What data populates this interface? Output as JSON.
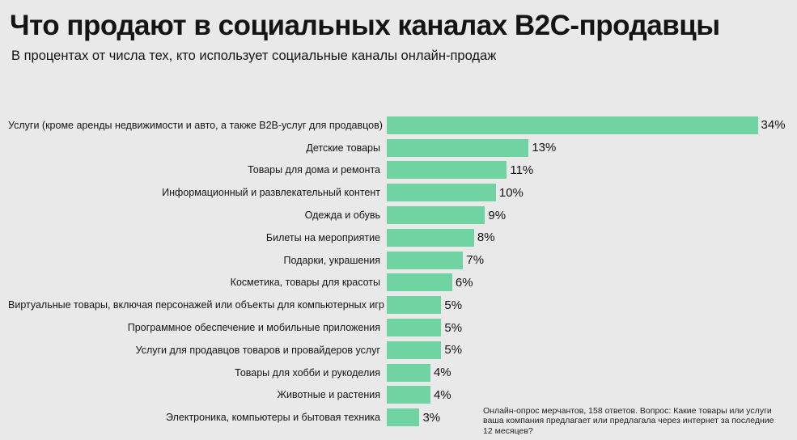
{
  "colors": {
    "bar": "#6fd3a2",
    "background": "#e9e9e9",
    "text": "#141414"
  },
  "footnote": "Онлайн-опрос мерчантов, 158 ответов. Вопрос: Какие товары или услуги ваша компания предлагает или предлагала через интернет за последние 12 месяцев?",
  "chart_data": {
    "type": "bar",
    "orientation": "horizontal",
    "title": "Что продают в социальных каналах B2C-продавцы",
    "subtitle": "В процентах от числа тех, кто использует социальные каналы онлайн-продаж",
    "unit": "%",
    "xlim": [
      0,
      37
    ],
    "grid": false,
    "legend": false,
    "categories": [
      "Услуги (кроме аренды недвижимости и авто, а также  B2B-услуг для продавцов)",
      "Детские товары",
      "Товары для дома и ремонта",
      "Информационный и развлекательный контент",
      "Одежда и обувь",
      "Билеты на мероприятие",
      "Подарки, украшения",
      "Косметика, товары для красоты",
      "Виртуальные товары, включая персонажей или объекты для компьютерных игр",
      "Программное обеспечение и мобильные приложения",
      "Услуги для продавцов товаров и провайдеров услуг",
      "Товары для хобби и рукоделия",
      "Животные и растения",
      "Электроника, компьютеры и бытовая техника"
    ],
    "values": [
      34,
      13,
      11,
      10,
      9,
      8,
      7,
      6,
      5,
      5,
      5,
      4,
      4,
      3
    ],
    "value_labels": [
      "34%",
      "13%",
      "11%",
      "10%",
      "9%",
      "8%",
      "7%",
      "6%",
      "5%",
      "5%",
      "5%",
      "4%",
      "4%",
      "3%"
    ]
  }
}
